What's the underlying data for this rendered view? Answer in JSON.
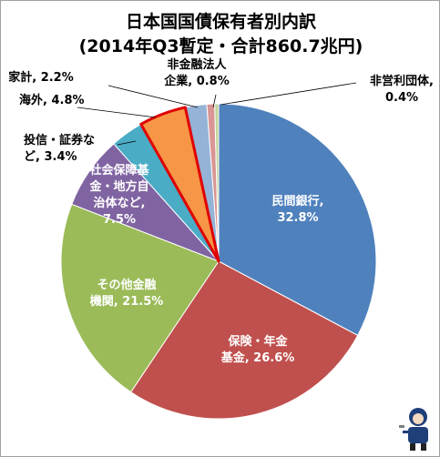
{
  "chart_data": {
    "type": "pie",
    "title": "日本国国債保有者別内訳",
    "subtitle": "(2014年Q3暫定・合計860.7兆円)",
    "slices": [
      {
        "lines": [
          "民間銀行,",
          "32.8%"
        ],
        "value": 32.8,
        "color": "#4f81bd"
      },
      {
        "lines": [
          "保険・年金",
          "基金, 26.6%"
        ],
        "value": 26.6,
        "color": "#c0504d"
      },
      {
        "lines": [
          "その他金融",
          "機関, 21.5%"
        ],
        "value": 21.5,
        "color": "#9bbb59"
      },
      {
        "lines": [
          "社会保障基",
          "金・地方自",
          "治体など,",
          "7.5%"
        ],
        "value": 7.5,
        "color": "#8064a2"
      },
      {
        "lines": [
          "投信・証券な",
          "ど, 3.4%"
        ],
        "value": 3.4,
        "color": "#4bacc6"
      },
      {
        "lines": [
          "海外, 4.8%"
        ],
        "value": 4.8,
        "color": "#f79646",
        "highlight": true
      },
      {
        "lines": [
          "家計, 2.2%"
        ],
        "value": 2.2,
        "color": "#95b3d7"
      },
      {
        "lines": [
          "非金融法人",
          "企業, 0.8%"
        ],
        "value": 0.8,
        "color": "#d99694"
      },
      {
        "lines": [
          "非営利団体,",
          "0.4%"
        ],
        "value": 0.4,
        "color": "#c3d69b"
      }
    ],
    "highlight_color": "#e00000",
    "legend": "none"
  }
}
